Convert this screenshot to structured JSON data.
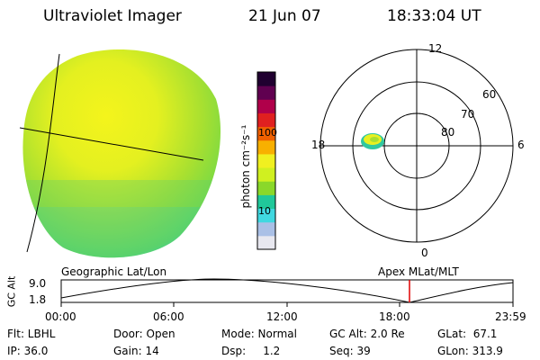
{
  "header": {
    "instrument": "Ultraviolet Imager",
    "date": "21 Jun 07",
    "time": "18:33:04 UT"
  },
  "colorbar": {
    "unit_label": "photon cm⁻²s⁻¹",
    "tick_100": "100",
    "tick_10": "10",
    "colors": [
      "#e8e8f0",
      "#aac0e6",
      "#40d8e0",
      "#20c89a",
      "#8ad82a",
      "#d0f020",
      "#f0f020",
      "#f8b000",
      "#f06000",
      "#e02020",
      "#b0004a",
      "#600050",
      "#200030"
    ]
  },
  "polar": {
    "labels": {
      "noon": "12",
      "midnight": "0",
      "dusk": "18",
      "dawn": "6"
    },
    "rings": [
      "60",
      "70",
      "80"
    ]
  },
  "altitude_plot": {
    "title_left": "Geographic Lat/Lon",
    "title_right": "Apex  MLat/MLT",
    "ylabel": "GC Alt",
    "y_max": "9.0",
    "y_min": "1.8",
    "x_ticks": [
      "00:00",
      "06:00",
      "12:00",
      "18:00",
      "23:59"
    ],
    "marker_color": "#e00000"
  },
  "footer": {
    "flt": "Flt: LBHL",
    "ip": "IP: 36.0",
    "door": "Door: Open",
    "gain": "Gain: 14",
    "mode": "Mode: Normal",
    "dsp": "Dsp:     1.2",
    "gcalt": "GC Alt: 2.0 Re",
    "seq": "Seq: 39",
    "glat": "GLat:  67.1",
    "glon": "GLon: 313.9"
  }
}
